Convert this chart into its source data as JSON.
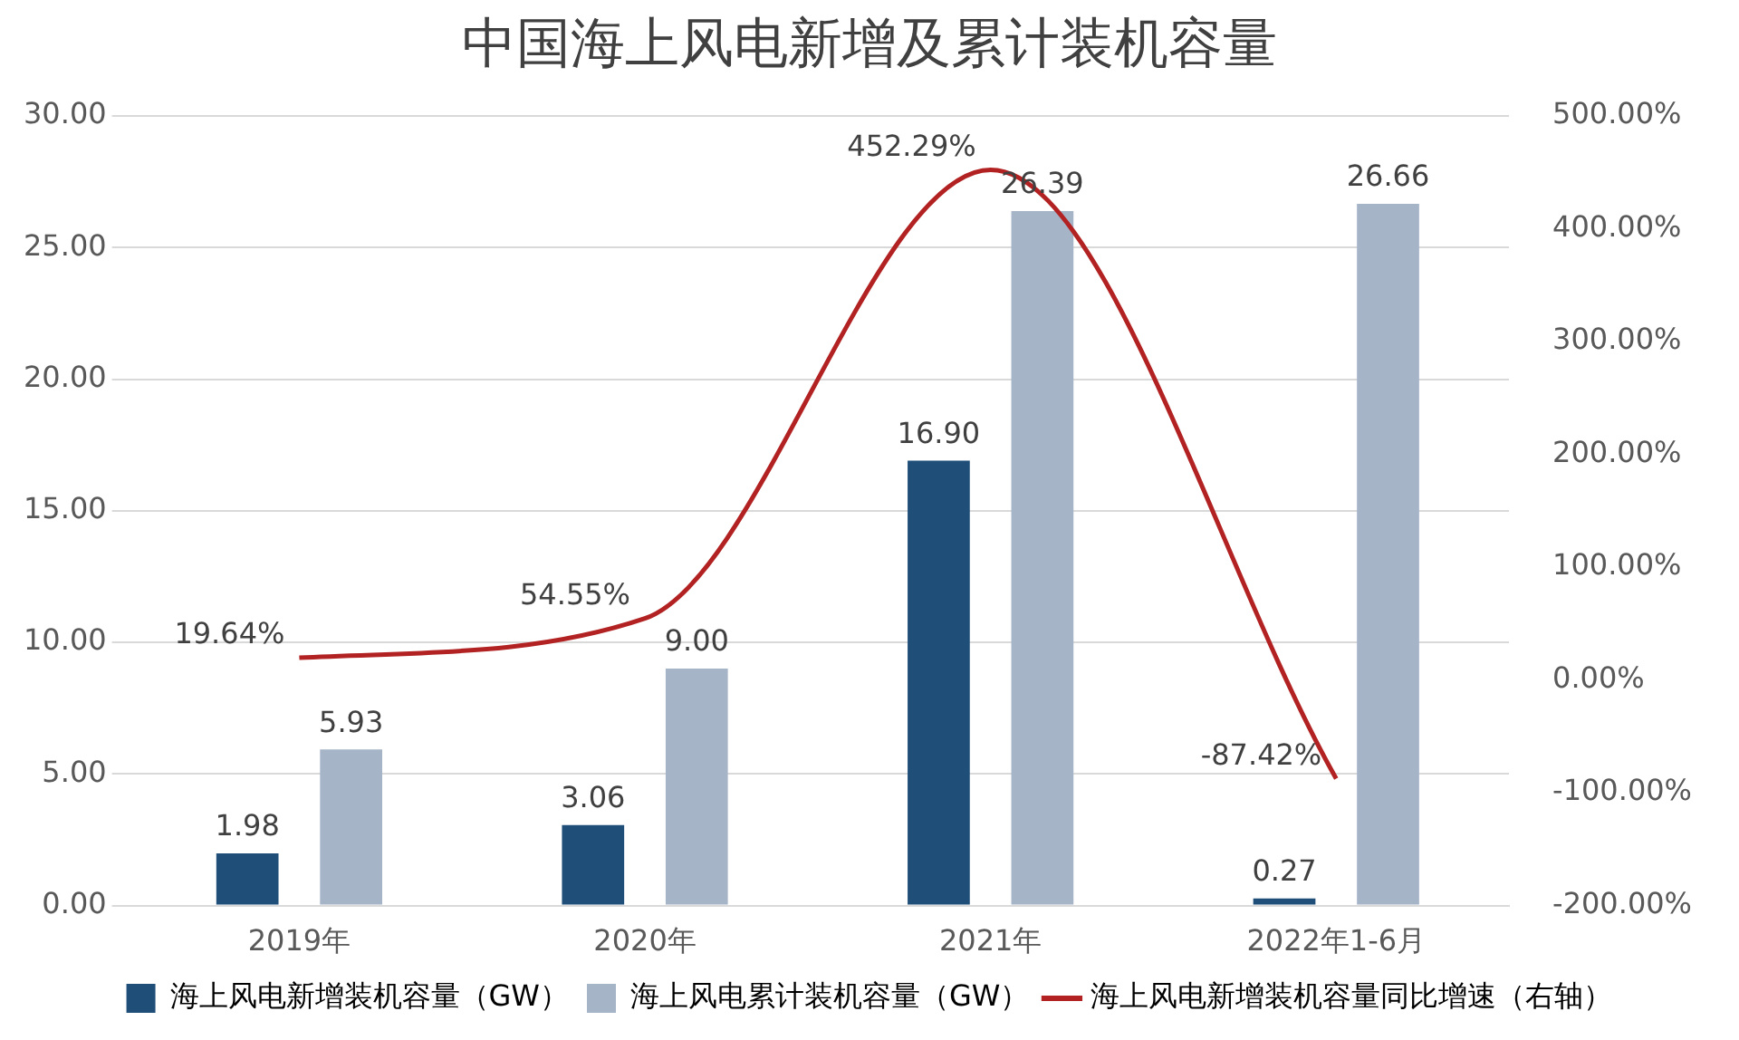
{
  "chart_data": {
    "type": "bar",
    "title": "中国海上风电新增及累计装机容量",
    "categories": [
      "2019年",
      "2020年",
      "2021年",
      "2022年1-6月"
    ],
    "series": [
      {
        "name": "海上风电新增装机容量（GW）",
        "type": "bar",
        "color": "#1f4e79",
        "values": [
          1.98,
          3.06,
          16.9,
          0.27
        ],
        "value_labels": [
          "1.98",
          "3.06",
          "16.90",
          "0.27"
        ]
      },
      {
        "name": "海上风电累计装机容量（GW）",
        "type": "bar",
        "color": "#a6b4c8",
        "values": [
          5.93,
          9.0,
          26.39,
          26.66
        ],
        "value_labels": [
          "5.93",
          "9.00",
          "26.39",
          "26.66"
        ]
      },
      {
        "name": "海上风电新增装机容量同比增速（右轴）",
        "type": "line",
        "axis": "y2",
        "color": "#b22222",
        "values": [
          19.64,
          54.55,
          452.29,
          -87.42
        ],
        "value_labels": [
          "19.64%",
          "54.55%",
          "452.29%",
          "-87.42%"
        ]
      }
    ],
    "ylim": [
      0,
      30
    ],
    "yticks": [
      {
        "value": 0,
        "label": "0.00"
      },
      {
        "value": 5,
        "label": "5.00"
      },
      {
        "value": 10,
        "label": "10.00"
      },
      {
        "value": 15,
        "label": "15.00"
      },
      {
        "value": 20,
        "label": "20.00"
      },
      {
        "value": 25,
        "label": "25.00"
      },
      {
        "value": 30,
        "label": "30.00"
      }
    ],
    "y2lim": [
      -200,
      500
    ],
    "y2ticks": [
      {
        "value": -200,
        "label": "-200.00%"
      },
      {
        "value": -100,
        "label": "-100.00%"
      },
      {
        "value": 0,
        "label": "0.00%"
      },
      {
        "value": 100,
        "label": "100.00%"
      },
      {
        "value": 200,
        "label": "200.00%"
      },
      {
        "value": 300,
        "label": "300.00%"
      },
      {
        "value": 400,
        "label": "400.00%"
      },
      {
        "value": 500,
        "label": "500.00%"
      }
    ],
    "grid": "y",
    "legend": "bottom",
    "marker": "none",
    "line_style": "solid"
  }
}
